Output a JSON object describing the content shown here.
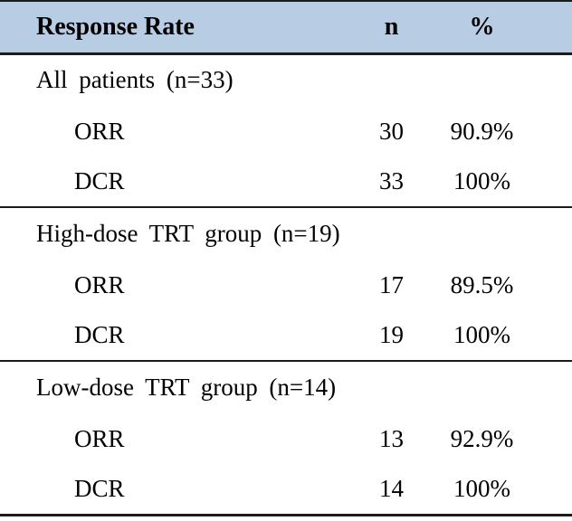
{
  "table": {
    "columns": [
      "Response Rate",
      "n",
      "%"
    ],
    "sections": [
      {
        "title": "All patients (n=33)",
        "rows": [
          {
            "label": "ORR",
            "n": "30",
            "pct": "90.9%"
          },
          {
            "label": "DCR",
            "n": "33",
            "pct": "100%"
          }
        ]
      },
      {
        "title": "High-dose TRT group (n=19)",
        "rows": [
          {
            "label": "ORR",
            "n": "17",
            "pct": "89.5%"
          },
          {
            "label": "DCR",
            "n": "19",
            "pct": "100%"
          }
        ]
      },
      {
        "title": "Low-dose TRT group (n=14)",
        "rows": [
          {
            "label": "ORR",
            "n": "13",
            "pct": "92.9%"
          },
          {
            "label": "DCR",
            "n": "14",
            "pct": "100%"
          }
        ]
      }
    ]
  },
  "colors": {
    "header_background": "#b8cce4",
    "border": "#1c1c1c",
    "text": "#000000",
    "page_background": "#ffffff"
  },
  "chart_data": {
    "type": "table",
    "title": "Response Rate",
    "column_headers": [
      "Response Rate",
      "n",
      "%"
    ],
    "rows": [
      [
        "All patients (n=33)",
        "",
        ""
      ],
      [
        "ORR",
        "30",
        "90.9%"
      ],
      [
        "DCR",
        "33",
        "100%"
      ],
      [
        "High-dose TRT group (n=19)",
        "",
        ""
      ],
      [
        "ORR",
        "17",
        "89.5%"
      ],
      [
        "DCR",
        "19",
        "100%"
      ],
      [
        "Low-dose TRT group (n=14)",
        "",
        ""
      ],
      [
        "ORR",
        "13",
        "92.9%"
      ],
      [
        "DCR",
        "14",
        "100%"
      ]
    ]
  }
}
